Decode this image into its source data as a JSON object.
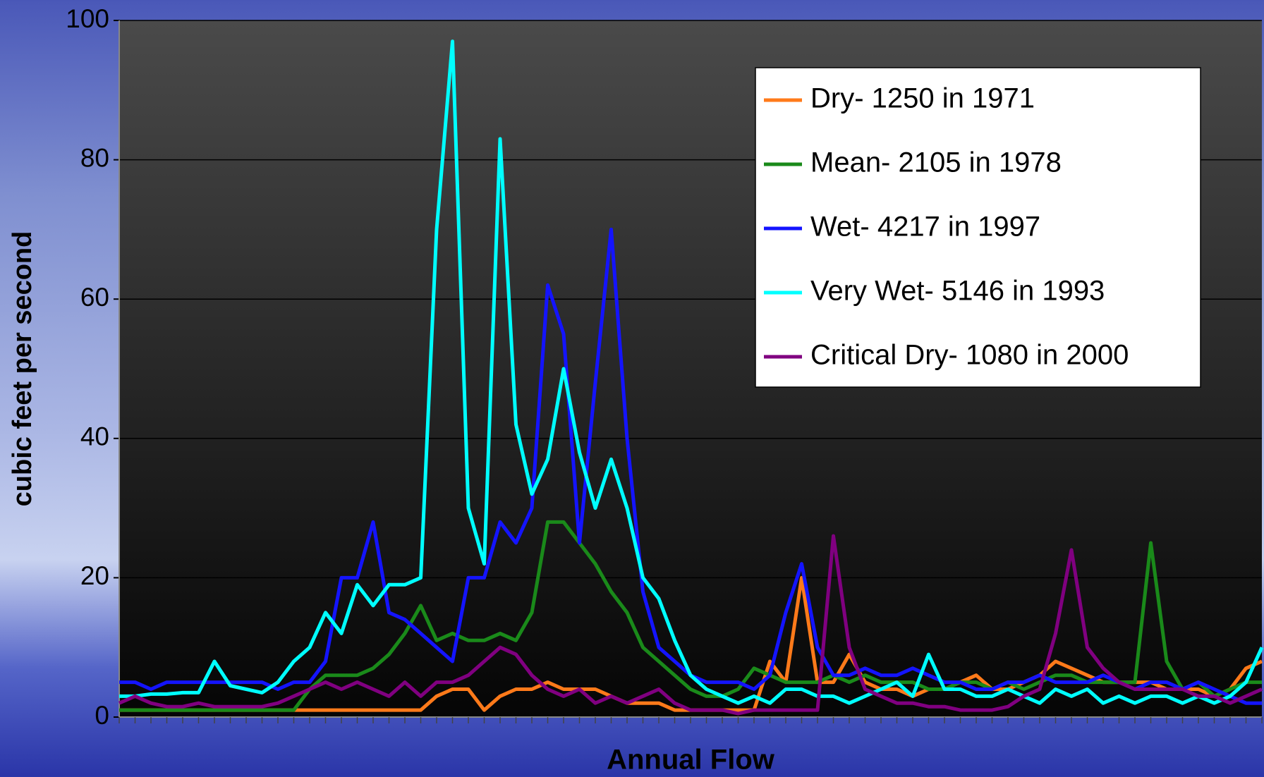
{
  "chart_data": {
    "type": "line",
    "x_label": "Annual Flow",
    "y_label": "cubic feet per second",
    "categories": [
      null,
      null,
      null,
      null,
      null,
      null,
      null,
      null,
      null,
      null,
      null,
      null,
      null,
      null,
      null,
      null,
      null,
      null,
      null,
      null,
      null,
      null,
      null,
      null,
      null,
      null,
      null,
      null,
      null,
      null,
      null,
      null,
      null,
      null,
      null,
      null,
      null,
      null,
      null,
      null,
      null,
      null,
      null,
      null,
      null,
      null,
      null,
      null,
      null,
      null,
      null,
      null,
      null,
      null,
      null,
      null,
      null,
      null,
      null,
      null,
      null,
      null,
      null,
      null,
      null,
      null,
      null,
      null,
      null,
      null,
      null,
      null,
      null
    ],
    "series": [
      {
        "name": "Dry- 1250 in 1971",
        "color": "#ff7a1a",
        "values": [
          1,
          1,
          1,
          1,
          1,
          1,
          1,
          1,
          1,
          1,
          1,
          1,
          1,
          1,
          1,
          1,
          1,
          1,
          1,
          1,
          3,
          4,
          4,
          1,
          3,
          4,
          4,
          5,
          4,
          4,
          4,
          3,
          2,
          2,
          2,
          1,
          1,
          1,
          1,
          1,
          1,
          8,
          5,
          20,
          5,
          5,
          9,
          5,
          4,
          4,
          3,
          4,
          4,
          5,
          6,
          4,
          4,
          5,
          6,
          8,
          7,
          6,
          5,
          5,
          5,
          5,
          4,
          4,
          4,
          3,
          4,
          7,
          8
        ]
      },
      {
        "name": "Mean- 2105 in 1978",
        "color": "#1a8a1a",
        "values": [
          1,
          1,
          1,
          1,
          1,
          1,
          1,
          1,
          1,
          1,
          1,
          1,
          4,
          6,
          6,
          6,
          7,
          9,
          12,
          16,
          11,
          12,
          11,
          11,
          12,
          11,
          15,
          28,
          28,
          25,
          22,
          18,
          15,
          10,
          8,
          6,
          4,
          3,
          3,
          4,
          7,
          6,
          5,
          5,
          5,
          6,
          5,
          6,
          5,
          5,
          5,
          4,
          4,
          5,
          5,
          4,
          5,
          4,
          5,
          6,
          6,
          5,
          5,
          5,
          5,
          25,
          8,
          4,
          5,
          3,
          4,
          5,
          5
        ]
      },
      {
        "name": "Wet- 4217 in 1997",
        "color": "#1414ff",
        "values": [
          5,
          5,
          4,
          5,
          5,
          5,
          5,
          5,
          5,
          5,
          4,
          5,
          5,
          8,
          20,
          20,
          28,
          15,
          14,
          12,
          10,
          8,
          20,
          20,
          28,
          25,
          30,
          62,
          55,
          25,
          48,
          70,
          40,
          18,
          10,
          8,
          6,
          5,
          5,
          5,
          4,
          6,
          15,
          22,
          10,
          6,
          6,
          7,
          6,
          6,
          7,
          6,
          5,
          5,
          4,
          4,
          5,
          5,
          6,
          5,
          5,
          5,
          6,
          5,
          4,
          5,
          5,
          4,
          5,
          4,
          3,
          2,
          2
        ]
      },
      {
        "name": "Very Wet- 5146 in 1993",
        "color": "#00ffff",
        "values": [
          3,
          3,
          3.3,
          3.3,
          3.5,
          3.5,
          8,
          4.5,
          4,
          3.5,
          5,
          8,
          10,
          15,
          12,
          19,
          16,
          19,
          19,
          20,
          70,
          97,
          30,
          22,
          83,
          42,
          32,
          37,
          50,
          38,
          30,
          37,
          30,
          20,
          17,
          11,
          6,
          4,
          3,
          2,
          3,
          2,
          4,
          4,
          3,
          3,
          2,
          3,
          4,
          5,
          3,
          9,
          4,
          4,
          3,
          3,
          4,
          3,
          2,
          4,
          3,
          4,
          2,
          3,
          2,
          3,
          3,
          2,
          3,
          2,
          3,
          5,
          10
        ]
      },
      {
        "name": "Critical Dry- 1080 in 2000",
        "color": "#800080",
        "values": [
          2,
          3,
          2,
          1.5,
          1.5,
          2,
          1.5,
          1.5,
          1.5,
          1.5,
          2,
          3,
          4,
          5,
          4,
          5,
          4,
          3,
          5,
          3,
          5,
          5,
          6,
          8,
          10,
          9,
          6,
          4,
          3,
          4,
          2,
          3,
          2,
          3,
          4,
          2,
          1,
          1,
          1,
          0.5,
          1,
          1,
          1,
          1,
          1,
          26,
          10,
          4,
          3,
          2,
          2,
          1.5,
          1.5,
          1,
          1,
          1,
          1.5,
          3,
          4,
          12,
          24,
          10,
          7,
          5,
          4,
          4,
          4,
          4,
          3,
          3,
          2,
          3,
          4
        ]
      }
    ],
    "ylim": [
      0,
      100
    ],
    "yticks": [
      0,
      20,
      40,
      60,
      80,
      100
    ],
    "grid": true,
    "legend": "upper right"
  }
}
